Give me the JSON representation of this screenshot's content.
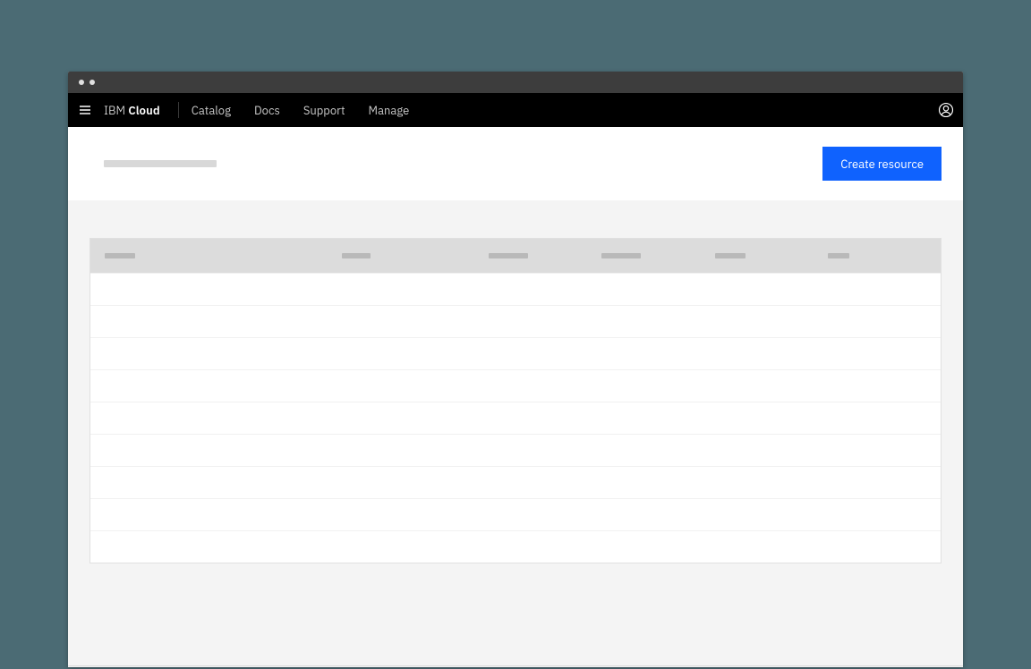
{
  "brand": {
    "light": "IBM ",
    "bold": "Cloud"
  },
  "nav": {
    "items": [
      {
        "label": "Catalog"
      },
      {
        "label": "Docs"
      },
      {
        "label": "Support"
      },
      {
        "label": "Manage"
      }
    ]
  },
  "actions": {
    "create_label": "Create resource"
  },
  "table": {
    "col_skeleton_widths": [
      34,
      32,
      44,
      44,
      34,
      24
    ],
    "row_count": 9
  },
  "colors": {
    "page_bg": "#4b6b74",
    "titlebar_bg": "#3d3d3d",
    "topnav_bg": "#000000",
    "primary_button": "#0f62fe",
    "content_bg": "#f4f4f4",
    "table_header_bg": "#dcdcdc",
    "skeleton_title": "#d8d8d8",
    "skeleton_header": "#b9b9b9",
    "row_border": "#f1f1f1"
  }
}
